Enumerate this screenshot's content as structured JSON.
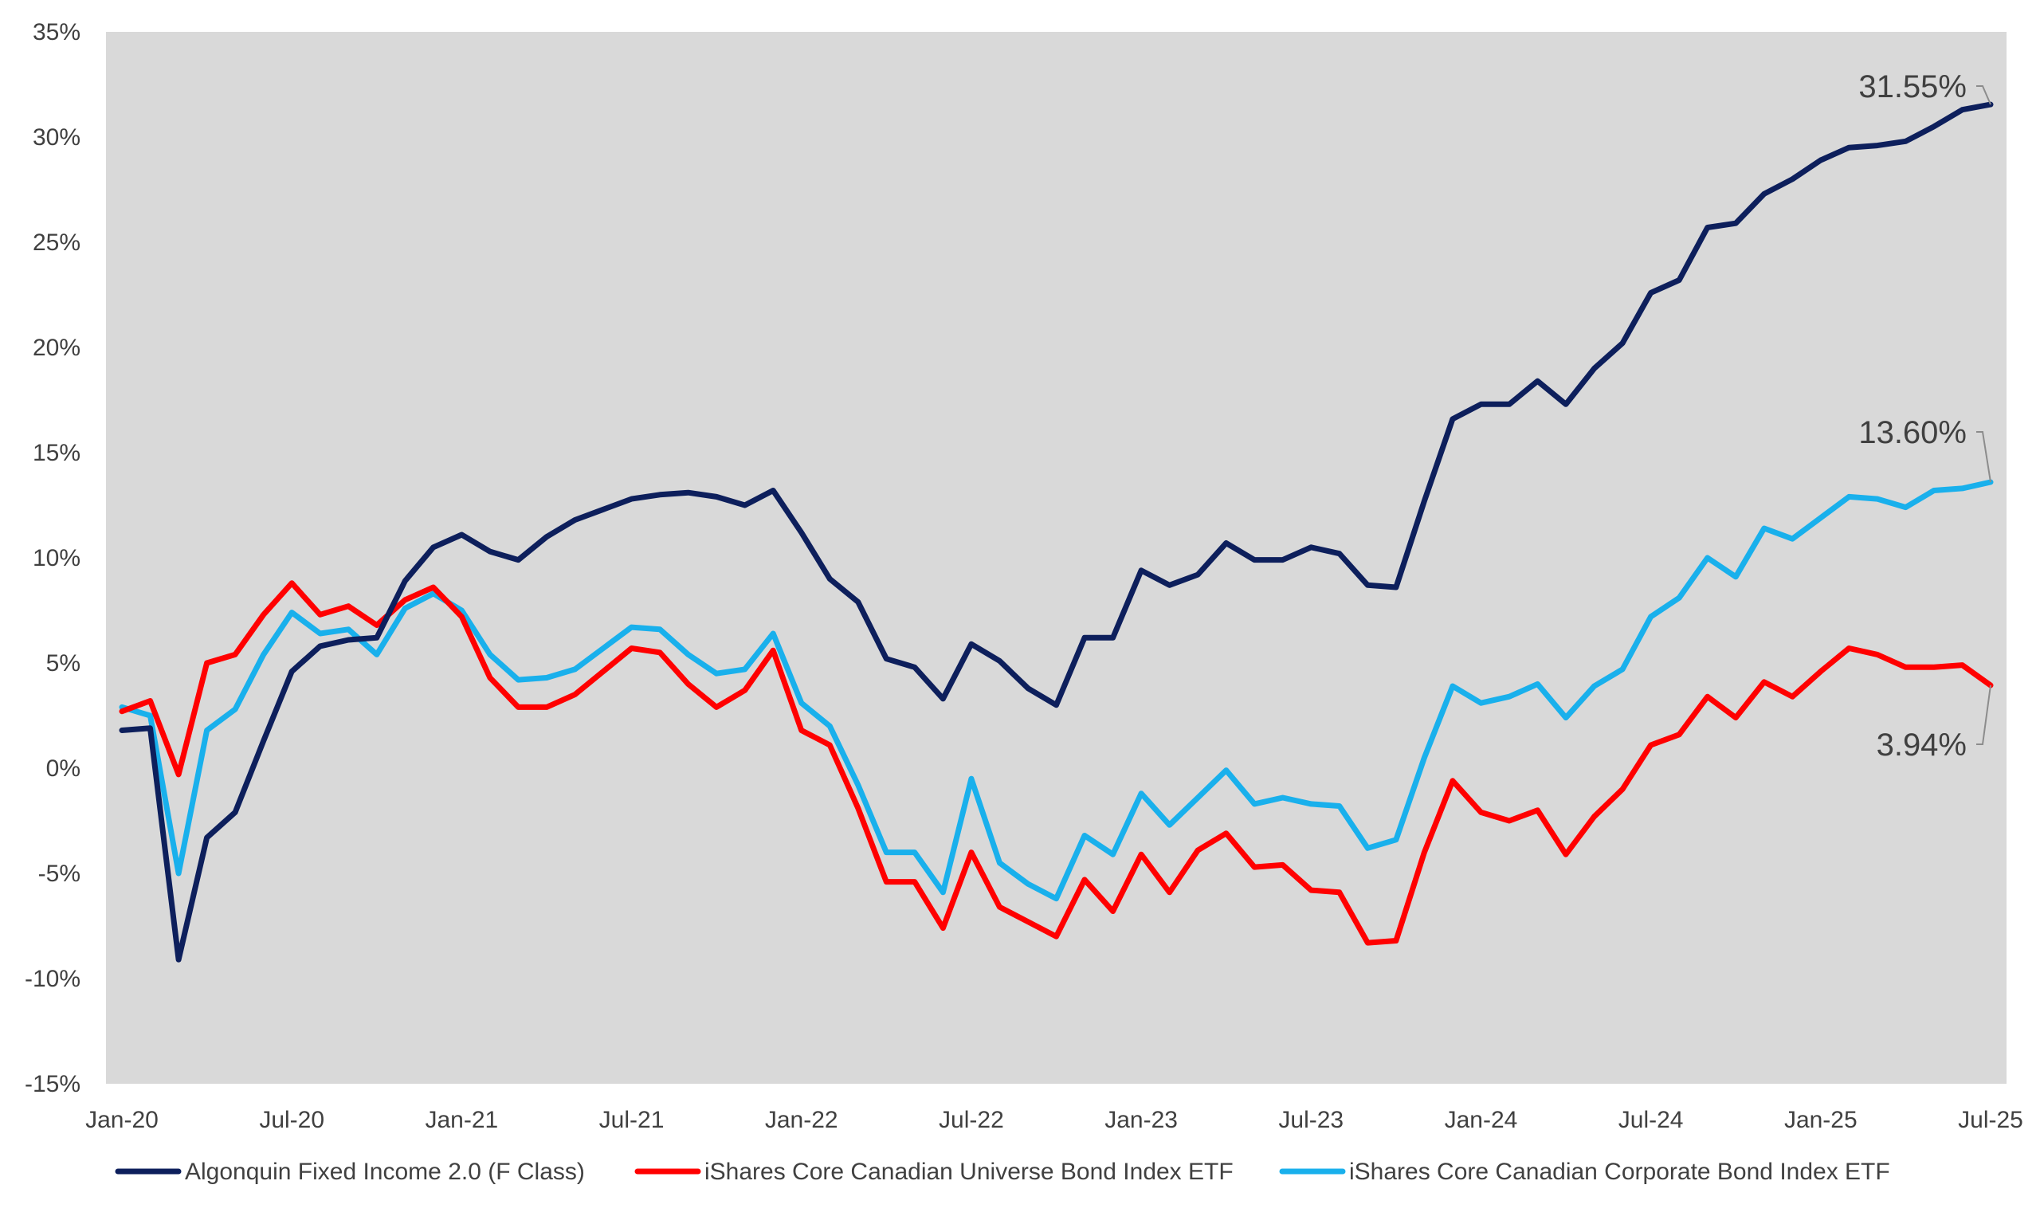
{
  "chart_data": {
    "type": "line",
    "title": "",
    "xlabel": "",
    "ylabel": "",
    "x_start": "2020-01",
    "x_end": "2025-07",
    "x_tick_labels": [
      "Jan-20",
      "Jul-20",
      "Jan-21",
      "Jul-21",
      "Jan-22",
      "Jul-22",
      "Jan-23",
      "Jul-23",
      "Jan-24",
      "Jul-24",
      "Jan-25",
      "Jul-25"
    ],
    "ylim": [
      -15,
      35
    ],
    "y_ticks": [
      -15,
      -10,
      -5,
      0,
      5,
      10,
      15,
      20,
      25,
      30,
      35
    ],
    "y_tick_labels": [
      "-15%",
      "-10%",
      "-5%",
      "0%",
      "5%",
      "10%",
      "15%",
      "20%",
      "25%",
      "30%",
      "35%"
    ],
    "grid": false,
    "plot_background": "#d9d9d9",
    "legend_position": "bottom",
    "series": [
      {
        "name": "Algonquin Fixed Income 2.0 (F Class)",
        "color": "#0d1f5c",
        "end_label": "31.55%",
        "values": [
          1.8,
          1.9,
          -9.1,
          -3.3,
          -2.1,
          1.3,
          4.6,
          5.8,
          6.1,
          6.2,
          8.9,
          10.5,
          11.1,
          10.3,
          9.9,
          11.0,
          11.8,
          12.3,
          12.8,
          13.0,
          13.1,
          12.9,
          12.5,
          13.2,
          11.2,
          9.0,
          7.9,
          5.2,
          4.8,
          3.3,
          5.9,
          5.1,
          3.8,
          3.0,
          6.2,
          6.2,
          9.4,
          8.7,
          9.2,
          10.7,
          9.9,
          9.9,
          10.5,
          10.2,
          8.7,
          8.6,
          12.7,
          16.6,
          17.3,
          17.3,
          18.4,
          17.3,
          19.0,
          20.2,
          22.6,
          23.2,
          25.7,
          25.9,
          27.3,
          28.0,
          28.9,
          29.5,
          29.6,
          29.8,
          30.5,
          31.3,
          31.55
        ]
      },
      {
        "name": "iShares Core Canadian Universe Bond Index ETF",
        "color": "#ff0000",
        "end_label": "3.94%",
        "values": [
          2.7,
          3.2,
          -0.3,
          5.0,
          5.4,
          7.3,
          8.8,
          7.3,
          7.7,
          6.8,
          8.0,
          8.6,
          7.2,
          4.3,
          2.9,
          2.9,
          3.5,
          4.6,
          5.7,
          5.5,
          4.0,
          2.9,
          3.7,
          5.6,
          1.8,
          1.1,
          -1.9,
          -5.4,
          -5.4,
          -7.6,
          -4.0,
          -6.6,
          -7.3,
          -8.0,
          -5.3,
          -6.8,
          -4.1,
          -5.9,
          -3.9,
          -3.1,
          -4.7,
          -4.6,
          -5.8,
          -5.9,
          -8.3,
          -8.2,
          -4.0,
          -0.6,
          -2.1,
          -2.5,
          -2.0,
          -4.1,
          -2.3,
          -1.0,
          1.1,
          1.6,
          3.4,
          2.4,
          4.1,
          3.4,
          4.6,
          5.7,
          5.4,
          4.8,
          4.8,
          4.9,
          3.94
        ]
      },
      {
        "name": "iShares Core Canadian Corporate Bond Index ETF",
        "color": "#19b0ec",
        "end_label": "13.60%",
        "values": [
          2.9,
          2.5,
          -5.0,
          1.8,
          2.8,
          5.4,
          7.4,
          6.4,
          6.6,
          5.4,
          7.6,
          8.3,
          7.5,
          5.4,
          4.2,
          4.3,
          4.7,
          5.7,
          6.7,
          6.6,
          5.4,
          4.5,
          4.7,
          6.4,
          3.1,
          2.0,
          -0.8,
          -4.0,
          -4.0,
          -5.9,
          -0.5,
          -4.5,
          -5.5,
          -6.2,
          -3.2,
          -4.1,
          -1.2,
          -2.7,
          -1.4,
          -0.1,
          -1.7,
          -1.4,
          -1.7,
          -1.8,
          -3.8,
          -3.4,
          0.5,
          3.9,
          3.1,
          3.4,
          4.0,
          2.4,
          3.9,
          4.7,
          7.2,
          8.1,
          10.0,
          9.1,
          11.4,
          10.9,
          11.9,
          12.9,
          12.8,
          12.4,
          13.2,
          13.3,
          13.6
        ]
      }
    ]
  }
}
